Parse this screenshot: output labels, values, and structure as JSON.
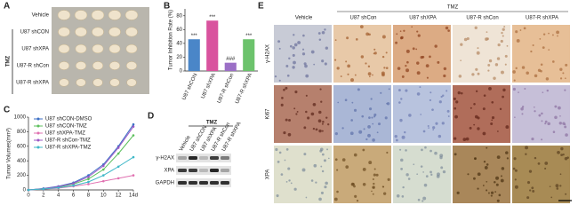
{
  "panel_a": {
    "label": "A",
    "rows": [
      "Vehicle",
      "U87 shCON",
      "U87 shXPA",
      "U87-R shCon",
      "U87-R shXPA"
    ],
    "treatment": "TMZ"
  },
  "chart_data": [
    {
      "type": "bar",
      "panel": "B",
      "ylabel": "Tumor Inhibition Rate (%)",
      "categories": [
        "U87 shCON",
        "U87 shXPA",
        "U87-R shCon",
        "U87-R shXPA"
      ],
      "values": [
        46,
        73,
        12,
        46
      ],
      "colors": [
        "#4a86c8",
        "#d9539e",
        "#9b6fc6",
        "#6cc36c"
      ],
      "annotations": [
        "***",
        "***",
        "###",
        "***"
      ],
      "ylim": [
        0,
        90
      ],
      "yticks": [
        0,
        20,
        40,
        60,
        80
      ]
    },
    {
      "type": "line",
      "panel": "C",
      "ylabel": "Tumor Volumes(mm³)",
      "x": [
        0,
        2,
        4,
        6,
        8,
        10,
        12,
        14
      ],
      "xlim": [
        0,
        14
      ],
      "xticks": [
        0,
        2,
        4,
        6,
        8,
        10,
        12,
        {
          "value": 14,
          "label": "14d"
        }
      ],
      "ylim": [
        0,
        1000
      ],
      "yticks": [
        0,
        200,
        400,
        600,
        800,
        1000
      ],
      "series": [
        {
          "name": "U87 shCON-DMSO",
          "color": "#3b6fc4",
          "values": [
            0,
            20,
            50,
            100,
            200,
            350,
            600,
            900
          ]
        },
        {
          "name": "U87 shCON-TMZ",
          "color": "#5cbf5c",
          "values": [
            0,
            15,
            40,
            80,
            150,
            280,
            500,
            750
          ]
        },
        {
          "name": "U87 shXPA-TMZ",
          "color": "#e070b0",
          "values": [
            0,
            10,
            25,
            50,
            80,
            120,
            160,
            200
          ]
        },
        {
          "name": "U87-R shCon-TMZ",
          "color": "#9b59c6",
          "values": [
            0,
            15,
            45,
            90,
            180,
            330,
            580,
            870
          ]
        },
        {
          "name": "U87-R shXPA-TMZ",
          "color": "#3fb8c8",
          "values": [
            0,
            12,
            30,
            60,
            110,
            200,
            320,
            450
          ]
        }
      ]
    }
  ],
  "panel_d": {
    "label": "D",
    "treatment": "TMZ",
    "lanes": [
      "Vehicle",
      "U87 shCON",
      "U87 shXPA",
      "U87-R shCon",
      "U87-R shXPA"
    ],
    "proteins": [
      "γ-H2AX",
      "XPA",
      "GAPDH"
    ]
  },
  "panel_e": {
    "label": "E",
    "treatment": "TMZ",
    "columns": [
      "Vehicle",
      "U87 shCon",
      "U87 shXPA",
      "U87-R shCon",
      "U87-R shXPA"
    ],
    "rows": [
      "γ-H2AX",
      "Ki67",
      "XPA"
    ]
  }
}
